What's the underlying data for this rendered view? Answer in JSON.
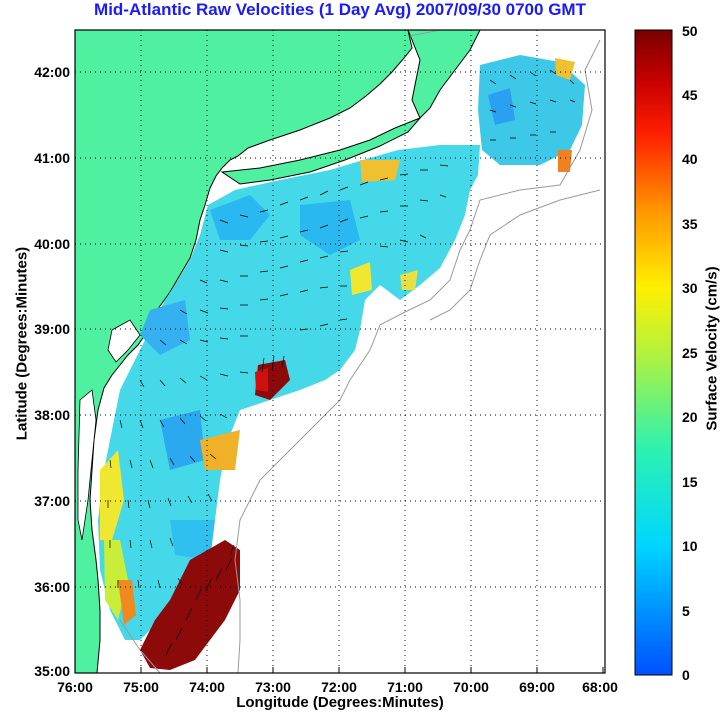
{
  "title": "Mid-Atlantic Raw Velocities (1 Day Avg) 2007/09/30 0700 GMT",
  "axes": {
    "xlabel": "Longitude (Degrees:Minutes)",
    "ylabel": "Latitude (Degrees:Minutes)",
    "x_ticks": [
      "76:00",
      "75:00",
      "74:00",
      "73:00",
      "72:00",
      "71:00",
      "70:00",
      "69:00",
      "68:00"
    ],
    "y_ticks": [
      "35:00",
      "36:00",
      "37:00",
      "38:00",
      "39:00",
      "40:00",
      "41:00",
      "42:00"
    ],
    "lon_range": [
      -76,
      -68
    ],
    "lat_range": [
      35,
      42.5
    ]
  },
  "colorbar": {
    "label": "Surface Velocity (cm/s)",
    "ticks": [
      "0",
      "5",
      "10",
      "15",
      "20",
      "25",
      "30",
      "35",
      "40",
      "45",
      "50"
    ],
    "range": [
      0,
      50
    ]
  },
  "colors": {
    "land": "#4ff0a0",
    "title": "#1a1aff",
    "grid": "#000000"
  }
}
